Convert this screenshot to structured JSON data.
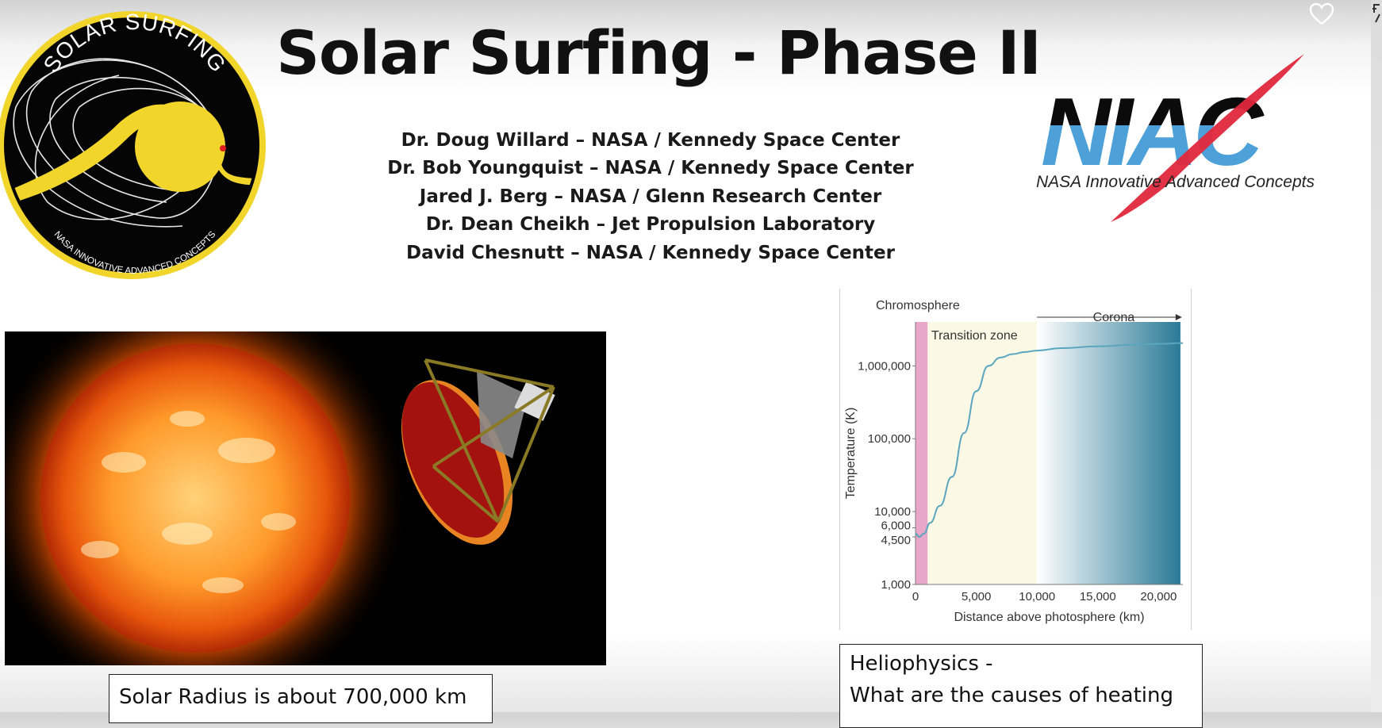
{
  "slide": {
    "title": "Solar Surfing - Phase II",
    "authors": [
      "Dr. Doug Willard – NASA / Kennedy Space Center",
      "Dr. Bob Youngquist – NASA / Kennedy Space Center",
      "Jared J. Berg – NASA / Glenn Research Center",
      "Dr. Dean Cheikh – Jet Propulsion Laboratory",
      "David Chesnutt – NASA / Kennedy Space Center"
    ],
    "logo": {
      "top_text": "SOLAR SURFING",
      "bottom_text": "NASA INNOVATIVE ADVANCED CONCEPTS"
    },
    "niac": {
      "wordmark": "NIAC",
      "subtitle": "NASA Innovative Advanced Concepts"
    },
    "captions": {
      "radius": "Solar Radius is about 700,000 km",
      "helio_line1": "Heliophysics -",
      "helio_line2": "What are the causes of heating"
    }
  },
  "chart_data": {
    "type": "line",
    "title": "",
    "xlabel": "Distance above photosphere (km)",
    "ylabel": "Temperature (K)",
    "x_scale": "linear",
    "y_scale": "log",
    "xlim": [
      0,
      22000
    ],
    "ylim": [
      1000,
      4000000
    ],
    "x_ticks": [
      0,
      5000,
      10000,
      15000,
      20000
    ],
    "x_tick_labels": [
      "0",
      "5,000",
      "10,000",
      "15,000",
      "20,000"
    ],
    "y_ticks": [
      1000,
      4500,
      6000,
      10000,
      100000,
      1000000
    ],
    "y_tick_labels": [
      "1,000",
      "4,500",
      "6,000",
      "10,000",
      "100,000",
      "1,000,000"
    ],
    "regions": [
      {
        "label": "Chromosphere",
        "from": 0,
        "to": 1000,
        "color": "#e8a7c8"
      },
      {
        "label": "Transition zone",
        "from": 1000,
        "to": 10000,
        "color": "#fbf8e6"
      },
      {
        "label": "Corona",
        "from": 10000,
        "to": 22000,
        "color": "#2a7a96"
      }
    ],
    "series": [
      {
        "x": [
          0,
          300,
          700,
          1200,
          2000,
          3000,
          4000,
          5000,
          6000,
          7000,
          8000,
          9000,
          10000,
          12000,
          15000,
          18000,
          20000,
          22000
        ],
        "y": [
          5000,
          4500,
          5000,
          7000,
          12000,
          30000,
          120000,
          450000,
          1000000,
          1300000,
          1450000,
          1550000,
          1620000,
          1750000,
          1850000,
          1950000,
          2000000,
          2050000
        ],
        "color": "#5aa6bf"
      }
    ]
  }
}
